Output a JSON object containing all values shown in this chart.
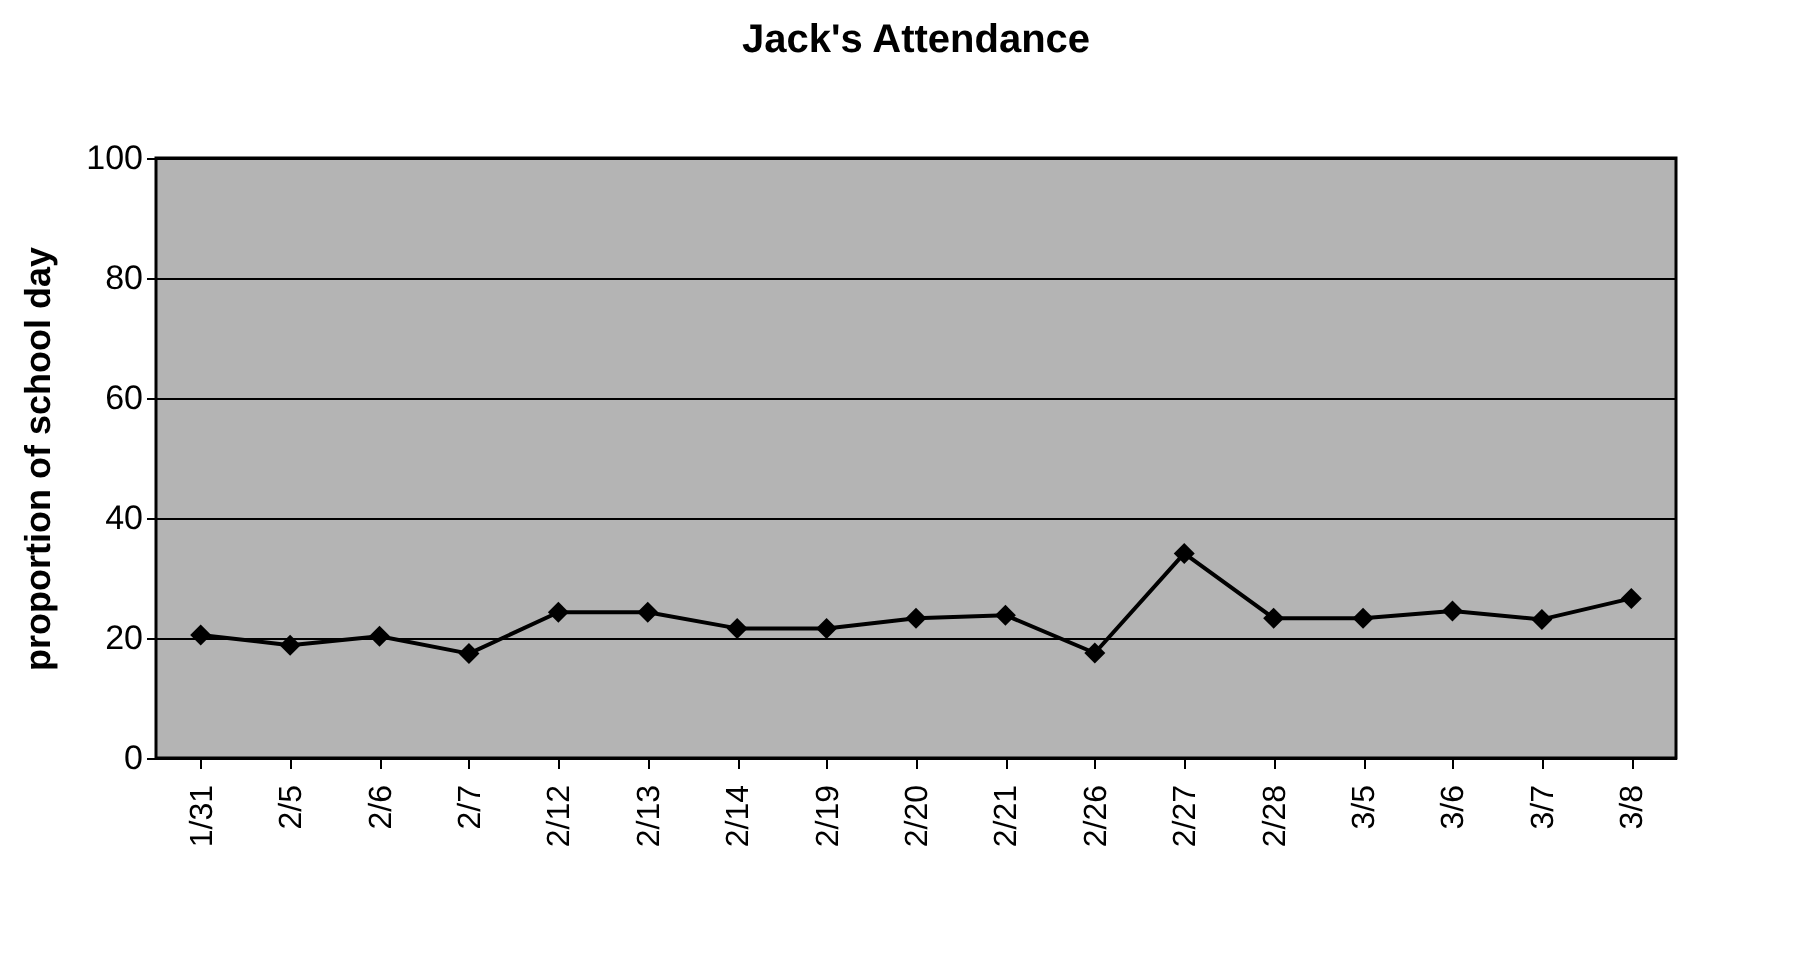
{
  "chart_data": {
    "type": "line",
    "title": "Jack's Attendance",
    "ylabel": "proportion of school day",
    "categories": [
      "1/31",
      "2/5",
      "2/6",
      "2/7",
      "2/12",
      "2/13",
      "2/14",
      "2/19",
      "2/20",
      "2/21",
      "2/26",
      "2/27",
      "2/28",
      "3/5",
      "3/6",
      "3/7",
      "3/8"
    ],
    "series": [
      {
        "color": "#000000",
        "values": [
          20.5,
          18.8,
          20.3,
          17.4,
          24.3,
          24.3,
          21.6,
          21.6,
          23.3,
          23.8,
          17.5,
          34.1,
          23.3,
          23.3,
          24.5,
          23.1,
          26.6
        ]
      }
    ],
    "ylim": [
      0,
      100
    ],
    "yticks": [
      0,
      20,
      40,
      60,
      80,
      100
    ],
    "grid": "y",
    "marker": "diamond",
    "line_style": "solid",
    "legend": false
  }
}
